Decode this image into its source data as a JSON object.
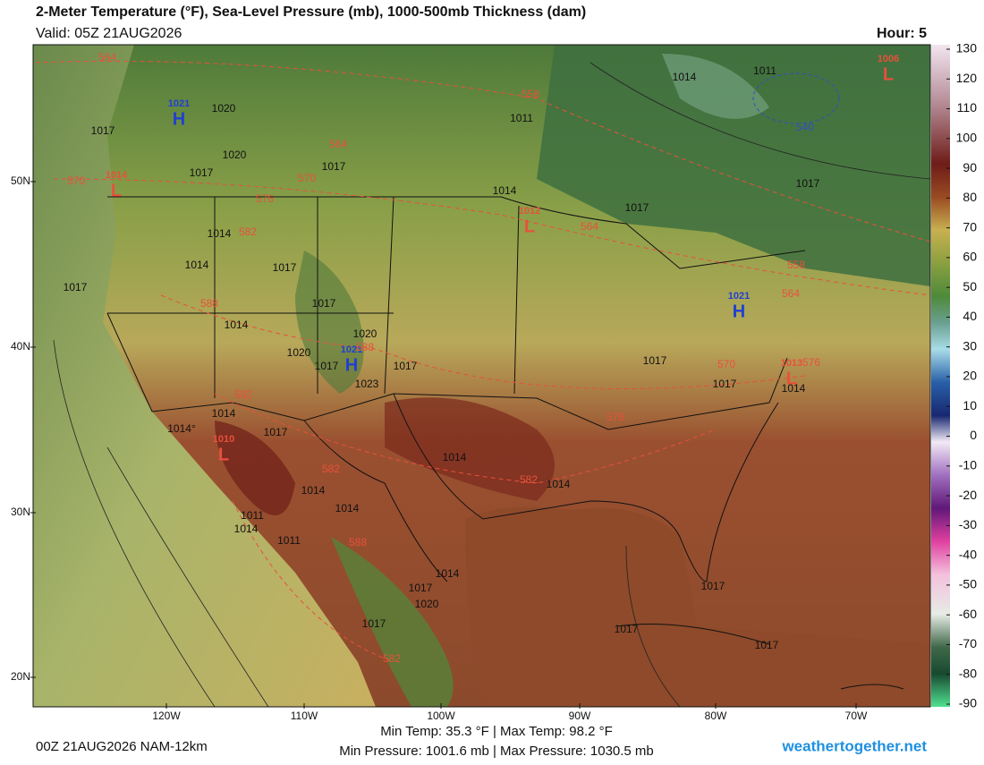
{
  "header": {
    "title": "2-Meter Temperature (°F), Sea-Level Pressure (mb), 1000-500mb Thickness (dam)",
    "valid": "Valid: 05Z 21AUG2026",
    "hour": "Hour: 5"
  },
  "map": {
    "lat_labels": [
      "50N",
      "40N",
      "30N",
      "20N"
    ],
    "lon_labels": [
      "120W",
      "110W",
      "100W",
      "90W",
      "80W",
      "70W"
    ],
    "pressure_centers": [
      {
        "letter": "H",
        "value": "1021"
      },
      {
        "letter": "L",
        "value": "1014"
      },
      {
        "letter": "L",
        "value": "1012"
      },
      {
        "letter": "H",
        "value": "1021"
      },
      {
        "letter": "H",
        "value": "1021"
      },
      {
        "letter": "L",
        "value": "1013"
      },
      {
        "letter": "L",
        "value": "1010"
      },
      {
        "letter": "L",
        "value": "1006"
      }
    ],
    "isobar_labels": [
      "1020",
      "1017",
      "1020",
      "1017",
      "1017",
      "1011",
      "1014",
      "1011",
      "1017",
      "1017",
      "1014",
      "1014",
      "1017",
      "1017",
      "1017",
      "1014",
      "1020",
      "1020",
      "1017",
      "1023",
      "1017",
      "1017",
      "1017",
      "1014",
      "1014",
      "1014°",
      "1017",
      "1014",
      "1014",
      "1014",
      "1014",
      "1011",
      "1014",
      "1011",
      "1014",
      "1017",
      "1020",
      "1017",
      "1017",
      "1017",
      "1017",
      "1014"
    ],
    "thickness_labels": [
      "564",
      "558",
      "564",
      "570",
      "576",
      "582",
      "588",
      "570",
      "588",
      "582",
      "570",
      "576",
      "576",
      "564",
      "558",
      "564",
      "582",
      "588",
      "582",
      "582",
      "540"
    ]
  },
  "colorbar": {
    "ticks": [
      130,
      120,
      110,
      100,
      90,
      80,
      70,
      60,
      50,
      40,
      30,
      20,
      10,
      0,
      -10,
      -20,
      -30,
      -40,
      -50,
      -60,
      -70,
      -80,
      -90
    ]
  },
  "footer": {
    "run": "00Z 21AUG2026 NAM-12km",
    "temps": "Min Temp: 35.3 °F | Max Temp: 98.2 °F",
    "pressure": "Min Pressure: 1001.6 mb | Max Pressure: 1030.5 mb",
    "site": "weathertogether.net"
  }
}
